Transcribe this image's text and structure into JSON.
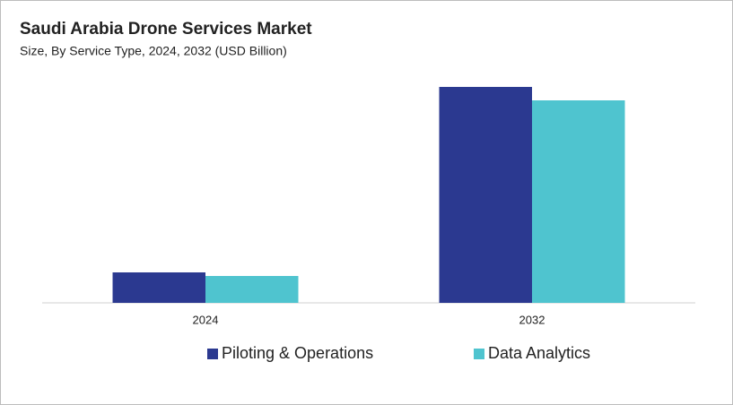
{
  "chart_data": {
    "type": "bar",
    "title": "Saudi Arabia Drone Services Market",
    "subtitle": "Size, By Service Type, 2024, 2032 (USD Billion)",
    "categories": [
      "2024",
      "2032"
    ],
    "series": [
      {
        "name": "Piloting & Operations",
        "color": "#2b3990",
        "values": [
          0.34,
          2.41
        ]
      },
      {
        "name": "Data Analytics",
        "color": "#4fc4cf",
        "values": [
          0.3,
          2.26
        ]
      }
    ],
    "ylim": [
      0,
      2.5
    ]
  }
}
